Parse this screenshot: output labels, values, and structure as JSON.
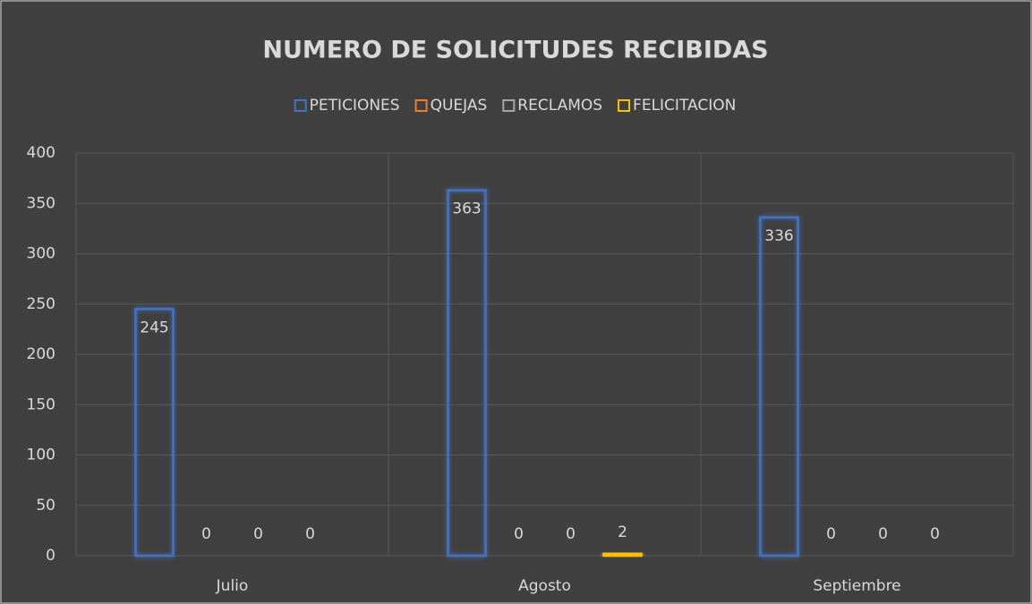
{
  "chart_data": {
    "type": "bar",
    "title": "NUMERO DE SOLICITUDES RECIBIDAS",
    "categories": [
      "Julio",
      "Agosto",
      "Septiembre"
    ],
    "series": [
      {
        "name": "PETICIONES",
        "color": "#4472c4",
        "values": [
          245,
          363,
          336
        ]
      },
      {
        "name": "QUEJAS",
        "color": "#ed7d31",
        "values": [
          0,
          0,
          0
        ]
      },
      {
        "name": "RECLAMOS",
        "color": "#a5a5a5",
        "values": [
          0,
          0,
          0
        ]
      },
      {
        "name": "FELICITACION",
        "color": "#ffc000",
        "values": [
          0,
          2,
          0
        ]
      }
    ],
    "ylim": [
      0,
      400
    ],
    "yticks": [
      0,
      50,
      100,
      150,
      200,
      250,
      300,
      350,
      400
    ],
    "grid": true,
    "legend": "top"
  }
}
